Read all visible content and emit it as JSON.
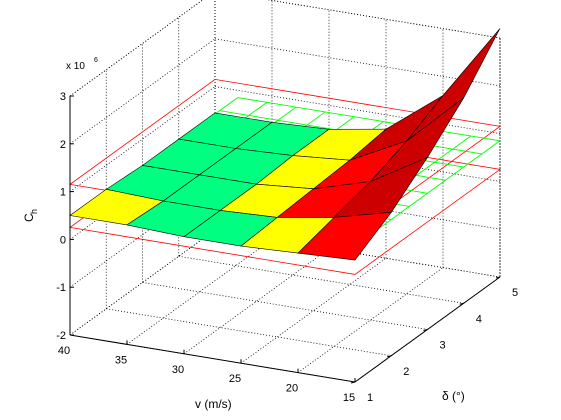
{
  "chart_data": {
    "type": "surface3d",
    "title": "",
    "scale_label": "x 10",
    "scale_exponent": "6",
    "zlabel": "C",
    "zlabel_sub": "h",
    "xlabel": "v (m/s)",
    "ylabel": "δ (°)",
    "x_ticks": [
      "40",
      "35",
      "30",
      "25",
      "20",
      "15"
    ],
    "y_ticks": [
      "1",
      "2",
      "3",
      "4",
      "5"
    ],
    "z_ticks": [
      "-2",
      "-1",
      "0",
      "1",
      "2",
      "3"
    ],
    "xlim": [
      15,
      40
    ],
    "ylim": [
      1,
      5
    ],
    "zlim": [
      -2,
      3
    ],
    "grid": true,
    "planes": [
      {
        "name": "",
        "z": 0.85,
        "color": "#00ff00",
        "style": "mesh"
      },
      {
        "name": "",
        "z_top": 1.15,
        "z_bottom": 0.25,
        "color": "#ff0000",
        "style": "outline"
      }
    ],
    "surface": {
      "colormap": [
        "#00ff80",
        "#ffff00",
        "#ff0000",
        "#cc0000"
      ],
      "description_values": {
        "v": [
          15,
          20,
          25,
          30,
          35,
          40
        ],
        "delta": [
          1,
          2,
          3,
          4,
          5
        ],
        "Ch_x1e6": [
          [
            0.55,
            0.5,
            0.45,
            0.45,
            0.5,
            0.5
          ],
          [
            1.0,
            0.7,
            0.5,
            0.45,
            0.45,
            0.5
          ],
          [
            1.6,
            0.9,
            0.55,
            0.45,
            0.45,
            0.45
          ],
          [
            2.3,
            1.2,
            0.6,
            0.5,
            0.45,
            0.45
          ],
          [
            3.2,
            1.6,
            0.7,
            0.5,
            0.45,
            0.45
          ]
        ]
      }
    }
  }
}
